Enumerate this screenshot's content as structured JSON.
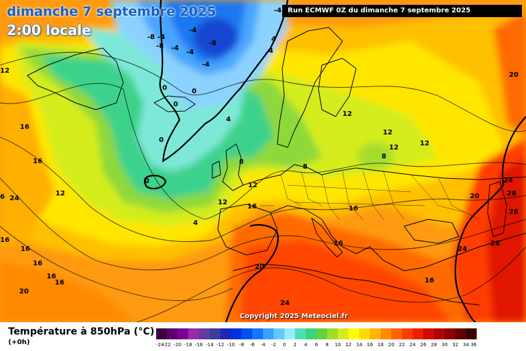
{
  "title": {
    "date": "dimanche 7 septembre 2025",
    "time": "2:00 locale"
  },
  "run_info": "Run ECMWF 0Z du dimanche 7 septembre 2025",
  "copyright": "Copyright 2025 Meteociel.fr",
  "legend": {
    "title": "Température à 850hPa (°C)",
    "subtitle": "(+0h)",
    "ticks": [
      "-24",
      "-22",
      "-20",
      "-18",
      "-16",
      "-14",
      "-12",
      "-10",
      "-8",
      "-6",
      "-4",
      "-2",
      "0",
      "2",
      "4",
      "6",
      "8",
      "10",
      "12",
      "14",
      "16",
      "18",
      "20",
      "22",
      "24",
      "26",
      "28",
      "30",
      "32",
      "34",
      "36"
    ],
    "colors": [
      "#3a0040",
      "#5c0070",
      "#7c0096",
      "#9a2aa8",
      "#603c9c",
      "#3c3c9c",
      "#1e28b4",
      "#0032dc",
      "#0050f0",
      "#1478ff",
      "#3ca0ff",
      "#64c8ff",
      "#96ebff",
      "#50dcb4",
      "#3cd278",
      "#64d23c",
      "#a0dc28",
      "#d2eb1e",
      "#ffff00",
      "#ffdc00",
      "#ffb400",
      "#ff8c00",
      "#ff6400",
      "#ff3c00",
      "#f01e00",
      "#d20a00",
      "#b40000",
      "#8c0000",
      "#640000",
      "#3c0000"
    ]
  },
  "isotherm_labels": [
    "-8",
    "-4",
    "-8",
    "-4",
    "-4",
    "-4",
    "-8",
    "-4",
    "-4",
    "4",
    "12",
    "0",
    "0",
    "0",
    "4",
    "0",
    "0",
    "16",
    "16",
    "12",
    "6",
    "16",
    "16",
    "16",
    "16",
    "20",
    "20",
    "8",
    "8",
    "12",
    "12",
    "12",
    "12",
    "12",
    "8",
    "16",
    "16",
    "16",
    "16",
    "20",
    "24",
    "28",
    "28",
    "28",
    "24",
    "20",
    "24",
    "16",
    "24",
    "4",
    "12",
    "12",
    "4"
  ]
}
